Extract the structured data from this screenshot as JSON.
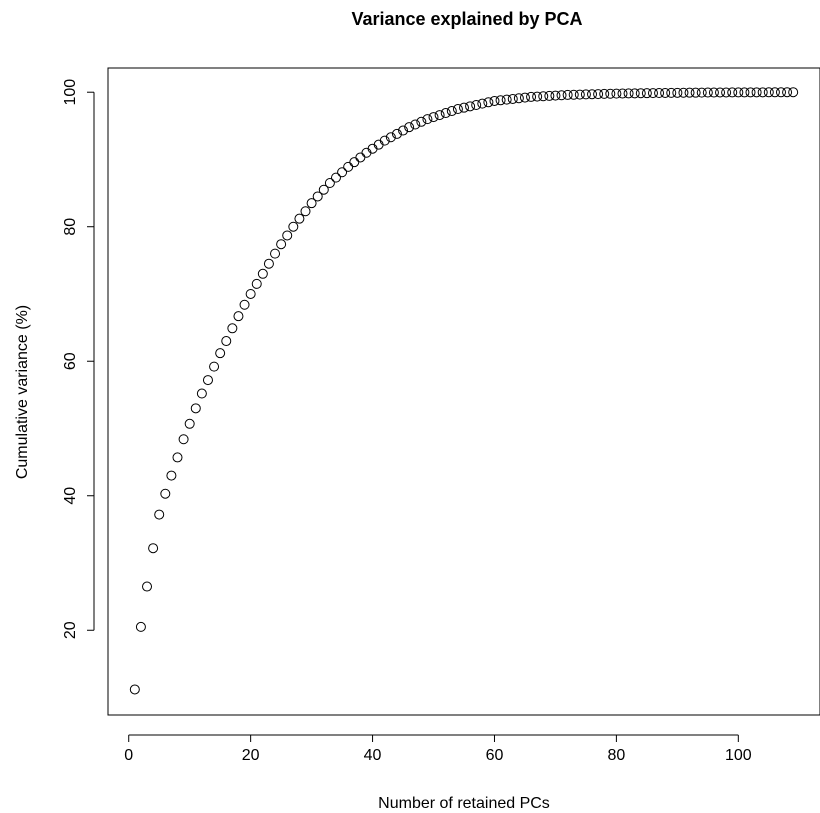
{
  "chart_data": {
    "type": "scatter",
    "title": "Variance explained by PCA",
    "xlabel": "Number of retained PCs",
    "ylabel": "Cumulative variance (%)",
    "xlim": [
      -3.4,
      113.4
    ],
    "ylim": [
      7.4,
      103.6
    ],
    "xticks": [
      0,
      20,
      40,
      60,
      80,
      100
    ],
    "yticks": [
      20,
      40,
      60,
      80,
      100
    ],
    "grid": false,
    "marker": "open-circle",
    "x": [
      1,
      2,
      3,
      4,
      5,
      6,
      7,
      8,
      9,
      10,
      11,
      12,
      13,
      14,
      15,
      16,
      17,
      18,
      19,
      20,
      21,
      22,
      23,
      24,
      25,
      26,
      27,
      28,
      29,
      30,
      31,
      32,
      33,
      34,
      35,
      36,
      37,
      38,
      39,
      40,
      41,
      42,
      43,
      44,
      45,
      46,
      47,
      48,
      49,
      50,
      51,
      52,
      53,
      54,
      55,
      56,
      57,
      58,
      59,
      60,
      61,
      62,
      63,
      64,
      65,
      66,
      67,
      68,
      69,
      70,
      71,
      72,
      73,
      74,
      75,
      76,
      77,
      78,
      79,
      80,
      81,
      82,
      83,
      84,
      85,
      86,
      87,
      88,
      89,
      90,
      91,
      92,
      93,
      94,
      95,
      96,
      97,
      98,
      99,
      100,
      101,
      102,
      103,
      104,
      105,
      106,
      107,
      108,
      109
    ],
    "y": [
      11.2,
      20.5,
      26.5,
      32.2,
      37.2,
      40.3,
      43.0,
      45.7,
      48.4,
      50.7,
      53.0,
      55.2,
      57.2,
      59.2,
      61.2,
      63.0,
      64.9,
      66.7,
      68.4,
      70.0,
      71.5,
      73.0,
      74.5,
      76.0,
      77.4,
      78.7,
      80.0,
      81.2,
      82.3,
      83.5,
      84.5,
      85.5,
      86.5,
      87.3,
      88.1,
      88.9,
      89.6,
      90.3,
      91.0,
      91.6,
      92.2,
      92.8,
      93.3,
      93.8,
      94.3,
      94.8,
      95.2,
      95.6,
      96.0,
      96.3,
      96.6,
      96.9,
      97.2,
      97.5,
      97.7,
      97.9,
      98.1,
      98.3,
      98.5,
      98.7,
      98.8,
      98.9,
      99.0,
      99.1,
      99.2,
      99.3,
      99.35,
      99.4,
      99.45,
      99.5,
      99.55,
      99.6,
      99.62,
      99.65,
      99.68,
      99.7,
      99.72,
      99.75,
      99.77,
      99.79,
      99.8,
      99.82,
      99.83,
      99.85,
      99.86,
      99.87,
      99.88,
      99.89,
      99.9,
      99.91,
      99.92,
      99.93,
      99.93,
      99.94,
      99.95,
      99.95,
      99.96,
      99.96,
      99.97,
      99.97,
      99.97,
      99.98,
      99.98,
      99.98,
      99.99,
      99.99,
      99.99,
      100.0,
      100.0
    ]
  }
}
